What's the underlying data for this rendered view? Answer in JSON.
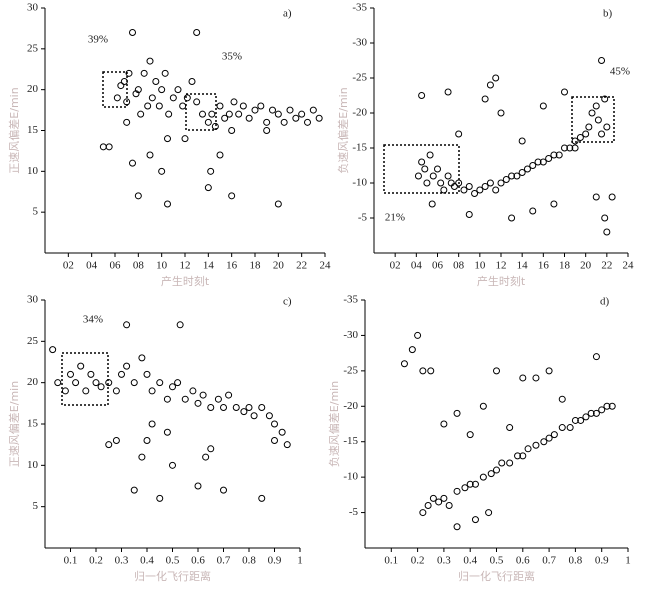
{
  "chart_data": [
    {
      "type": "scatter",
      "title": "a)",
      "x_label": "产生时刻t",
      "y_label": "正速风偏差E/min",
      "annotations": [
        "39%",
        "35%"
      ],
      "color": "#000000",
      "xlim": [
        0,
        24
      ],
      "ylim": [
        0,
        30
      ],
      "xticks": [
        {
          "value": 2,
          "label": "02"
        },
        {
          "value": 4,
          "label": "04"
        },
        {
          "value": 6,
          "label": "06"
        },
        {
          "value": 8,
          "label": "08"
        },
        10,
        12,
        14,
        16,
        18,
        20,
        22,
        24
      ],
      "yticks": [
        5,
        10,
        15,
        20,
        25,
        30
      ],
      "x": [
        6.2,
        6.5,
        6.8,
        7,
        7.2,
        7.5,
        7.8,
        8,
        8.2,
        8.5,
        8.8,
        9,
        9.2,
        9.5,
        9.8,
        10,
        10.3,
        10.6,
        11,
        11.4,
        11.8,
        12.2,
        12.6,
        13,
        13.5,
        14,
        14.3,
        14.6,
        15,
        15.4,
        15.8,
        16.2,
        16.6,
        17,
        17.5,
        18,
        18.5,
        19,
        19.5,
        20,
        20.5,
        21,
        21.5,
        22,
        22.5,
        23,
        23.5,
        7,
        7.5,
        8,
        9,
        10,
        10.5,
        12,
        13,
        14,
        15,
        16,
        19,
        20,
        5,
        5.5,
        10.5,
        14.2,
        16
      ],
      "values": [
        19,
        20.5,
        21,
        18.5,
        22,
        27,
        19.5,
        20,
        17,
        22,
        18,
        23.5,
        19,
        21,
        18,
        20,
        22,
        17,
        19,
        20,
        18,
        19,
        21,
        18.5,
        17,
        16,
        17,
        15.5,
        18,
        16.5,
        17,
        18.5,
        17,
        18,
        16.5,
        17.5,
        18,
        16,
        17.5,
        17,
        16,
        17.5,
        16.5,
        17,
        16,
        17.5,
        16.5,
        16,
        11,
        7,
        12,
        10,
        6,
        14,
        27,
        8,
        12,
        7,
        15,
        6,
        13,
        13,
        14,
        10,
        15
      ]
    },
    {
      "type": "scatter",
      "title": "b)",
      "x_label": "产生时刻t",
      "y_label": "负速风偏差E/min",
      "annotations": [
        "45%",
        "21%"
      ],
      "color": "#000000",
      "xlim": [
        0,
        24
      ],
      "ylim": [
        0,
        -35
      ],
      "xticks": [
        {
          "value": 2,
          "label": "02"
        },
        {
          "value": 4,
          "label": "04"
        },
        {
          "value": 6,
          "label": "06"
        },
        {
          "value": 8,
          "label": "08"
        },
        10,
        12,
        14,
        16,
        18,
        20,
        22,
        24
      ],
      "yticks": [
        -5,
        -10,
        -15,
        -20,
        -25,
        -30,
        -35
      ],
      "x": [
        4.2,
        4.5,
        4.8,
        5,
        5.3,
        5.6,
        6,
        6.3,
        6.6,
        7,
        7.3,
        7.6,
        8,
        8.5,
        9,
        9.5,
        10,
        10.5,
        11,
        11.5,
        12,
        12.5,
        13,
        13.5,
        14,
        14.5,
        15,
        15.5,
        16,
        16.5,
        17,
        17.5,
        18,
        18.5,
        19,
        19.5,
        20,
        20.3,
        20.6,
        21,
        21.2,
        21.5,
        21.8,
        22,
        4.5,
        5.5,
        7,
        8,
        9,
        10.5,
        11,
        11.5,
        12,
        13,
        14,
        15,
        16,
        17,
        18,
        19,
        21.5,
        21.8,
        22,
        22.5,
        21
      ],
      "values": [
        -11,
        -13,
        -12,
        -10,
        -14,
        -11,
        -12,
        -10,
        -9,
        -11,
        -10,
        -9.5,
        -10,
        -9,
        -9.5,
        -8.5,
        -9,
        -9.5,
        -10,
        -9,
        -10,
        -10.5,
        -11,
        -11,
        -11.5,
        -12,
        -12.5,
        -13,
        -13,
        -13.5,
        -14,
        -14,
        -15,
        -15,
        -16,
        -16.5,
        -17,
        -18,
        -20,
        -21,
        -19,
        -17,
        -22,
        -18,
        -22.5,
        -7,
        -23,
        -17,
        -5.5,
        -22,
        -24,
        -25,
        -20,
        -5,
        -16,
        -6,
        -21,
        -7,
        -23,
        -15,
        -27.5,
        -5,
        -3,
        -8,
        -8
      ]
    },
    {
      "type": "scatter",
      "title": "c)",
      "x_label": "归一化飞行距离",
      "y_label": "正速风偏差E/min",
      "annotations": [
        "34%"
      ],
      "color": "#000000",
      "xlim": [
        0,
        1
      ],
      "ylim": [
        0,
        30
      ],
      "xticks": [
        0.1,
        0.2,
        0.3,
        0.4,
        0.5,
        0.6,
        0.7,
        0.8,
        0.9,
        1
      ],
      "yticks": [
        5,
        10,
        15,
        20,
        25,
        30
      ],
      "x": [
        0.05,
        0.08,
        0.1,
        0.12,
        0.14,
        0.16,
        0.18,
        0.2,
        0.22,
        0.25,
        0.28,
        0.3,
        0.32,
        0.35,
        0.38,
        0.4,
        0.42,
        0.45,
        0.48,
        0.5,
        0.52,
        0.55,
        0.58,
        0.6,
        0.62,
        0.65,
        0.68,
        0.7,
        0.72,
        0.75,
        0.78,
        0.8,
        0.82,
        0.85,
        0.88,
        0.9,
        0.93,
        0.03,
        0.32,
        0.35,
        0.38,
        0.4,
        0.45,
        0.5,
        0.53,
        0.6,
        0.65,
        0.7,
        0.85,
        0.25,
        0.28,
        0.42,
        0.48,
        0.63,
        0.9,
        0.95
      ],
      "values": [
        20,
        19,
        21,
        20,
        22,
        19,
        21,
        20,
        19.5,
        20,
        19,
        21,
        22,
        20,
        23,
        21,
        19,
        20,
        18,
        19.5,
        20,
        18,
        19,
        17.5,
        18.5,
        17,
        18,
        17,
        18.5,
        17,
        16.5,
        17,
        16,
        17,
        16,
        15,
        14,
        24,
        27,
        7,
        11,
        13,
        6,
        10,
        27,
        7.5,
        12,
        7,
        6,
        12.5,
        13,
        15,
        14,
        11,
        13,
        12.5
      ]
    },
    {
      "type": "scatter",
      "title": "d)",
      "x_label": "归一化飞行距离",
      "y_label": "负速风偏差E/min",
      "annotations": [],
      "color": "#000000",
      "xlim": [
        0,
        1
      ],
      "ylim": [
        0,
        -35
      ],
      "xticks": [
        0.1,
        0.2,
        0.3,
        0.4,
        0.5,
        0.6,
        0.7,
        0.8,
        0.9,
        1
      ],
      "yticks": [
        -5,
        -10,
        -15,
        -20,
        -25,
        -30,
        -35
      ],
      "x": [
        0.22,
        0.24,
        0.26,
        0.28,
        0.3,
        0.32,
        0.35,
        0.38,
        0.4,
        0.42,
        0.45,
        0.48,
        0.5,
        0.52,
        0.55,
        0.58,
        0.6,
        0.62,
        0.65,
        0.68,
        0.7,
        0.72,
        0.75,
        0.78,
        0.8,
        0.82,
        0.84,
        0.86,
        0.88,
        0.9,
        0.92,
        0.94,
        0.15,
        0.18,
        0.2,
        0.22,
        0.25,
        0.3,
        0.35,
        0.4,
        0.45,
        0.5,
        0.55,
        0.6,
        0.65,
        0.7,
        0.75,
        0.88,
        0.42,
        0.35,
        0.47
      ],
      "values": [
        -5,
        -6,
        -7,
        -6.5,
        -7,
        -6,
        -8,
        -8.5,
        -9,
        -9,
        -10,
        -10.5,
        -11,
        -12,
        -12,
        -13,
        -13,
        -14,
        -14.5,
        -15,
        -15.5,
        -16,
        -17,
        -17,
        -18,
        -18,
        -18.5,
        -19,
        -19,
        -19.5,
        -20,
        -20,
        -26,
        -28,
        -30,
        -25,
        -25,
        -17.5,
        -19,
        -16,
        -20,
        -25,
        -17,
        -24,
        -24,
        -25,
        -21,
        -27,
        -4,
        -3,
        -5
      ]
    }
  ]
}
